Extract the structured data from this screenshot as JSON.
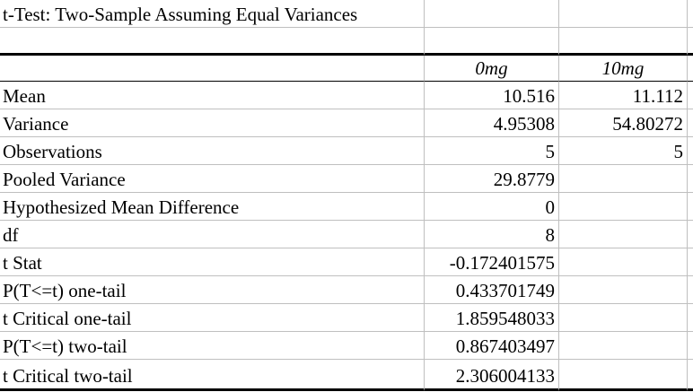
{
  "title": "t-Test: Two-Sample Assuming Equal Variances",
  "colors": {
    "background": "#ffffff",
    "text": "#000000",
    "gridline": "#bfbfbf",
    "heavy_border": "#000000"
  },
  "table": {
    "columns": [
      "",
      "0mg",
      "10mg"
    ],
    "rows": [
      {
        "label": "Mean",
        "values": [
          "10.516",
          "11.112"
        ]
      },
      {
        "label": "Variance",
        "values": [
          "4.95308",
          "54.80272"
        ]
      },
      {
        "label": "Observations",
        "values": [
          "5",
          "5"
        ]
      },
      {
        "label": "Pooled Variance",
        "values": [
          "29.8779",
          ""
        ]
      },
      {
        "label": "Hypothesized Mean Difference",
        "values": [
          "0",
          ""
        ]
      },
      {
        "label": "df",
        "values": [
          "8",
          ""
        ]
      },
      {
        "label": "t Stat",
        "values": [
          "-0.172401575",
          ""
        ]
      },
      {
        "label": "P(T<=t) one-tail",
        "values": [
          "0.433701749",
          ""
        ]
      },
      {
        "label": "t Critical one-tail",
        "values": [
          "1.859548033",
          ""
        ]
      },
      {
        "label": "P(T<=t) two-tail",
        "values": [
          "0.867403497",
          ""
        ]
      },
      {
        "label": "t Critical two-tail",
        "values": [
          "2.306004133",
          ""
        ]
      }
    ]
  }
}
